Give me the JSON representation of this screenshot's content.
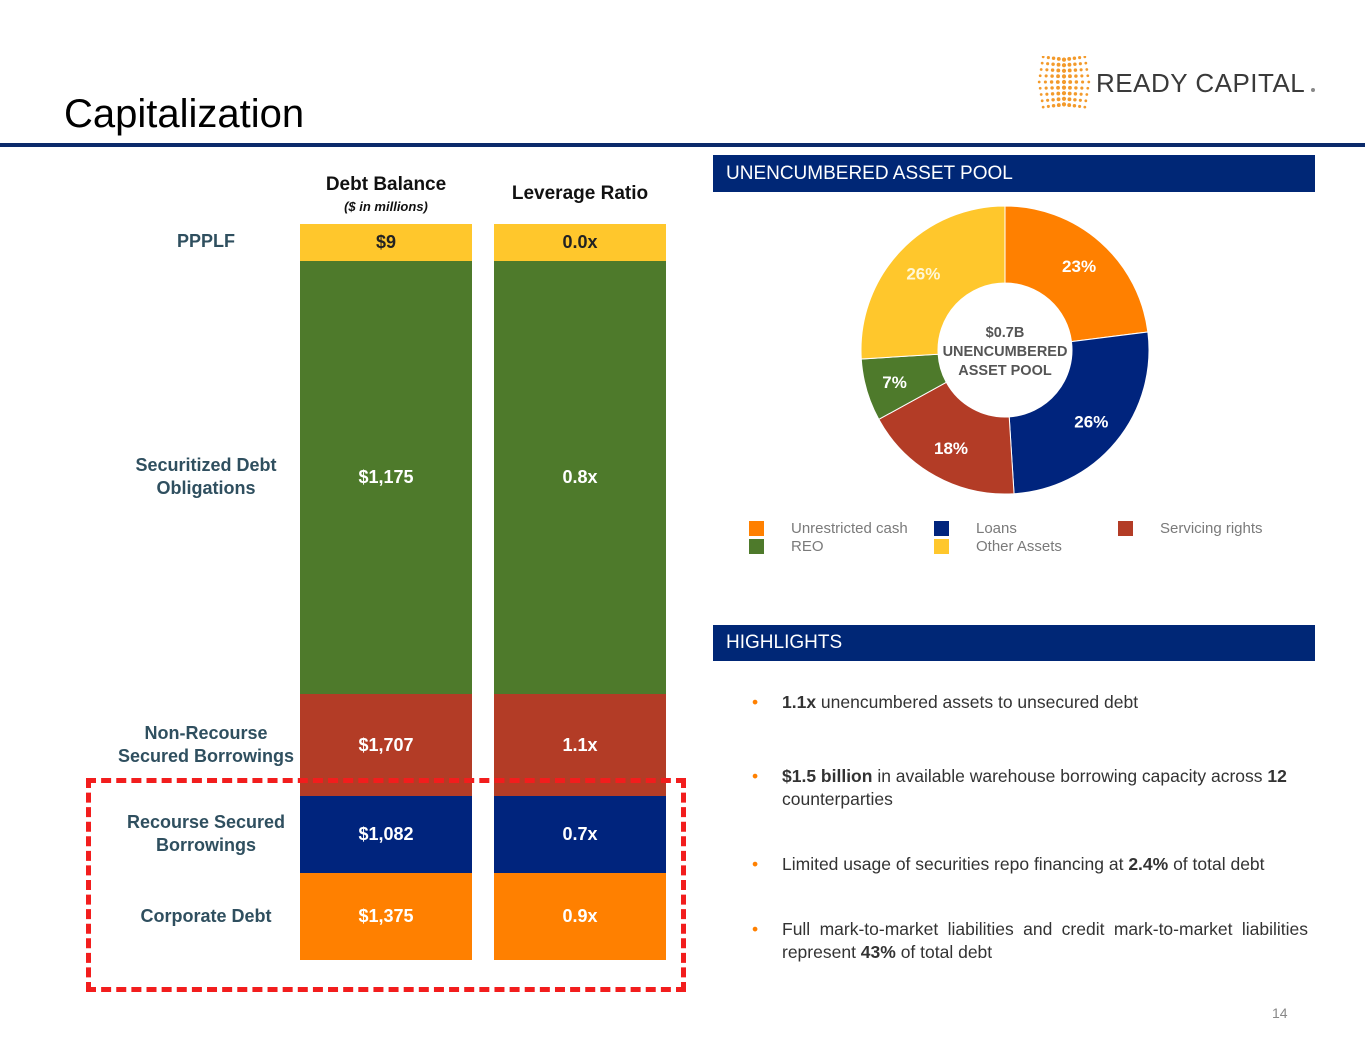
{
  "title": "Capitalization",
  "logo_text": "READY CAPITAL",
  "page_number": "14",
  "colors": {
    "navy": "#002776",
    "orange": "#FF8000",
    "loans": "#00247D",
    "servicing": "#B33C26",
    "reo": "#4E7A2B",
    "other": "#FFC72C"
  },
  "chart_data": [
    {
      "type": "bar",
      "title": "Debt Balance",
      "subtitle": "($ in millions)",
      "categories": [
        "PPPLF",
        "Securitized Debt Obligations",
        "Non-Recourse Secured Borrowings",
        "Recourse Secured Borrowings",
        "Corporate Debt"
      ],
      "values": [
        9,
        1175,
        1707,
        1082,
        1375
      ],
      "labels": [
        "$9",
        "$1,175",
        "$1,707",
        "$1,082",
        "$1,375"
      ]
    },
    {
      "type": "bar",
      "title": "Leverage Ratio",
      "categories": [
        "PPPLF",
        "Securitized Debt Obligations",
        "Non-Recourse Secured Borrowings",
        "Recourse Secured Borrowings",
        "Corporate Debt"
      ],
      "values": [
        0.0,
        0.8,
        1.1,
        0.7,
        0.9
      ],
      "labels": [
        "0.0x",
        "0.8x",
        "1.1x",
        "0.7x",
        "0.9x"
      ]
    },
    {
      "type": "pie",
      "title": "UNENCUMBERED ASSET POOL",
      "center_label": [
        "$0.7B",
        "UNENCUMBERED",
        "ASSET POOL"
      ],
      "categories": [
        "Unrestricted cash",
        "Loans",
        "Servicing rights",
        "REO",
        "Other Assets"
      ],
      "values": [
        23,
        26,
        18,
        7,
        26
      ],
      "labels": [
        "23%",
        "26%",
        "18%",
        "7%",
        "26%"
      ],
      "legend": "bottom"
    }
  ],
  "row_labels": [
    [
      "PPPLF"
    ],
    [
      "Securitized Debt",
      "Obligations"
    ],
    [
      "Non-Recourse",
      "Secured Borrowings"
    ],
    [
      "Recourse Secured",
      "Borrowings"
    ],
    [
      "Corporate Debt"
    ]
  ],
  "highlights": {
    "title": "HIGHLIGHTS",
    "items": [
      {
        "b1": "1.1x",
        "t1": " unencumbered assets to unsecured debt"
      },
      {
        "b1": "$1.5 billion",
        "t1": " in available warehouse borrowing capacity across ",
        "b2": "12",
        "t2": " counterparties"
      },
      {
        "t0": "Limited usage of securities repo financing at ",
        "b1": "2.4%",
        "t1": " of total debt"
      },
      {
        "t0": "Full mark-to-market liabilities and credit mark-to-market liabilities represent ",
        "b1": "43%",
        "t1": " of total debt"
      }
    ]
  }
}
